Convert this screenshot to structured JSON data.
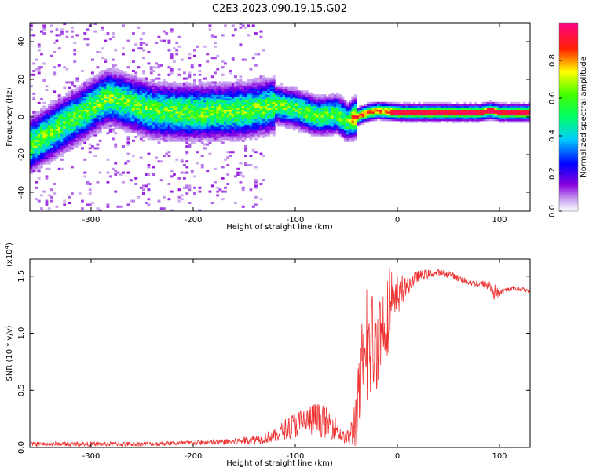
{
  "figure": {
    "title": "C2E3.2023.090.19.15.G02"
  },
  "chart_data": [
    {
      "type": "heatmap",
      "title": "C2E3.2023.090.19.15.G02",
      "xlabel": "Height of straight line (km)",
      "ylabel": "Frequency (Hz)",
      "xlim": [
        -360,
        130
      ],
      "ylim": [
        -50,
        50
      ],
      "xticks": [
        -300,
        -200,
        -100,
        0,
        100
      ],
      "yticks": [
        -40,
        -20,
        0,
        20,
        40
      ],
      "ridge": {
        "x": [
          -360,
          -330,
          -300,
          -285,
          -270,
          -240,
          -200,
          -150,
          -120,
          -100,
          -80,
          -60,
          -50,
          -40,
          -30,
          -20,
          0,
          50,
          80,
          90,
          100,
          130
        ],
        "freq_hz": [
          -15,
          -5,
          5,
          10,
          8,
          3,
          2,
          3,
          6,
          4,
          0,
          1,
          -3,
          0,
          2,
          3,
          2,
          2,
          2,
          3,
          2,
          2
        ]
      },
      "colorbar": {
        "label": "Normalized spectral amplitude",
        "range": [
          0,
          1
        ],
        "ticks": [
          0.0,
          0.2,
          0.4,
          0.6,
          0.8
        ],
        "colormap": [
          "#ffffff",
          "#9400d3",
          "#0000ff",
          "#00ffff",
          "#00ff00",
          "#ffff00",
          "#ff0000",
          "#ff00ff"
        ]
      }
    },
    {
      "type": "line",
      "xlabel": "Height of straight line (km)",
      "ylabel": "SNR (10 * v/v)",
      "yscale_label": "(x10",
      "yscale_exp": "4",
      "yscale_close": ")",
      "xlim": [
        -360,
        130
      ],
      "ylim": [
        0,
        1.65
      ],
      "xticks": [
        -300,
        -200,
        -100,
        0,
        100
      ],
      "yticks": [
        0.0,
        0.5,
        1.0,
        1.5
      ],
      "series": [
        {
          "color": "#ee3333",
          "x": [
            -360,
            -340,
            -300,
            -250,
            -200,
            -160,
            -140,
            -120,
            -110,
            -100,
            -90,
            -80,
            -70,
            -60,
            -55,
            -50,
            -45,
            -40,
            -35,
            -30,
            -25,
            -20,
            -15,
            -10,
            -5,
            0,
            10,
            20,
            30,
            40,
            50,
            60,
            70,
            80,
            90,
            95,
            100,
            110,
            120,
            130
          ],
          "y": [
            0.03,
            0.03,
            0.03,
            0.03,
            0.04,
            0.05,
            0.07,
            0.1,
            0.16,
            0.2,
            0.22,
            0.25,
            0.22,
            0.17,
            0.1,
            0.08,
            0.1,
            0.3,
            0.55,
            0.8,
            0.9,
            0.95,
            1.05,
            1.15,
            1.2,
            1.3,
            1.42,
            1.5,
            1.52,
            1.53,
            1.52,
            1.48,
            1.45,
            1.43,
            1.42,
            1.36,
            1.35,
            1.39,
            1.39,
            1.37
          ],
          "noise_amp": [
            0.02,
            0.02,
            0.02,
            0.02,
            0.02,
            0.03,
            0.04,
            0.06,
            0.09,
            0.12,
            0.14,
            0.15,
            0.14,
            0.1,
            0.06,
            0.05,
            0.15,
            0.3,
            0.4,
            0.45,
            0.5,
            0.45,
            0.4,
            0.35,
            0.25,
            0.15,
            0.08,
            0.05,
            0.04,
            0.03,
            0.03,
            0.03,
            0.03,
            0.03,
            0.05,
            0.08,
            0.03,
            0.02,
            0.02,
            0.02
          ]
        }
      ]
    }
  ]
}
